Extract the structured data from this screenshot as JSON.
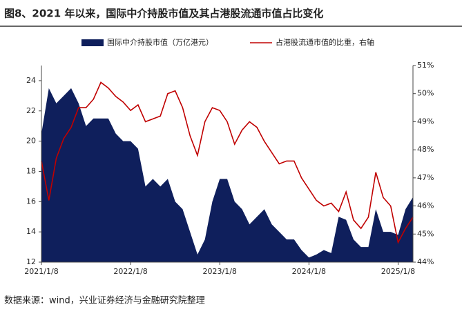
{
  "chart_data": {
    "type": "area",
    "title": "图8、2021 年以来，国际中介持股市值及其占港股流通市值占比变化",
    "source": "数据来源：wind，兴业证券经济与金融研究院整理",
    "categories": [
      "2021/1/8",
      null,
      null,
      null,
      null,
      null,
      null,
      null,
      null,
      null,
      null,
      null,
      "2022/1/8",
      null,
      null,
      null,
      null,
      null,
      null,
      null,
      null,
      null,
      null,
      null,
      "2023/1/8",
      null,
      null,
      null,
      null,
      null,
      null,
      null,
      null,
      null,
      null,
      null,
      "2024/1/8",
      null,
      null,
      null,
      null,
      null,
      null,
      null,
      null,
      null,
      null,
      null,
      "2025/1/8",
      null,
      null
    ],
    "series": [
      {
        "name": "国际中介持股市值（万亿港元）",
        "type": "area",
        "color": "#0f1f5c",
        "values": [
          20.5,
          23.5,
          22.5,
          23,
          23.5,
          22.5,
          21,
          21.5,
          21.5,
          21.5,
          20.5,
          20,
          20,
          19.5,
          17,
          17.5,
          17,
          17.5,
          16,
          15.5,
          14,
          12.5,
          13.5,
          16,
          17.5,
          17.5,
          16,
          15.5,
          14.5,
          15,
          15.5,
          14.5,
          14,
          13.5,
          13.5,
          12.8,
          12.3,
          12.5,
          12.8,
          12.6,
          15,
          14.8,
          13.5,
          13,
          13,
          15.5,
          14,
          14,
          13.8,
          15.5,
          16.3
        ]
      },
      {
        "name": "占港股流通市值的比重，右轴",
        "type": "line",
        "axis": "y2",
        "color": "#c00000",
        "values": [
          47.6,
          46.2,
          47.7,
          48.4,
          48.8,
          49.5,
          49.5,
          49.8,
          50.4,
          50.2,
          49.9,
          49.7,
          49.4,
          49.6,
          49,
          49.1,
          49.2,
          50,
          50.1,
          49.5,
          48.5,
          47.8,
          49,
          49.5,
          49.4,
          49,
          48.2,
          48.7,
          49,
          48.8,
          48.3,
          47.9,
          47.5,
          47.6,
          47.6,
          47,
          46.6,
          46.2,
          46,
          46.1,
          45.8,
          46.5,
          45.5,
          45.2,
          45.6,
          47.2,
          46.3,
          46,
          44.7,
          45.2,
          45.6
        ]
      }
    ],
    "ylim": [
      12,
      25
    ],
    "yticks": [
      12,
      14,
      16,
      18,
      20,
      22,
      24
    ],
    "y2lim": [
      44,
      51
    ],
    "y2ticks": [
      {
        "value": 44,
        "label": "44%"
      },
      {
        "value": 45,
        "label": "45%"
      },
      {
        "value": 46,
        "label": "46%"
      },
      {
        "value": 47,
        "label": "47%"
      },
      {
        "value": 48,
        "label": "48%"
      },
      {
        "value": 49,
        "label": "49%"
      },
      {
        "value": 50,
        "label": "50%"
      },
      {
        "value": 51,
        "label": "51%"
      }
    ]
  }
}
